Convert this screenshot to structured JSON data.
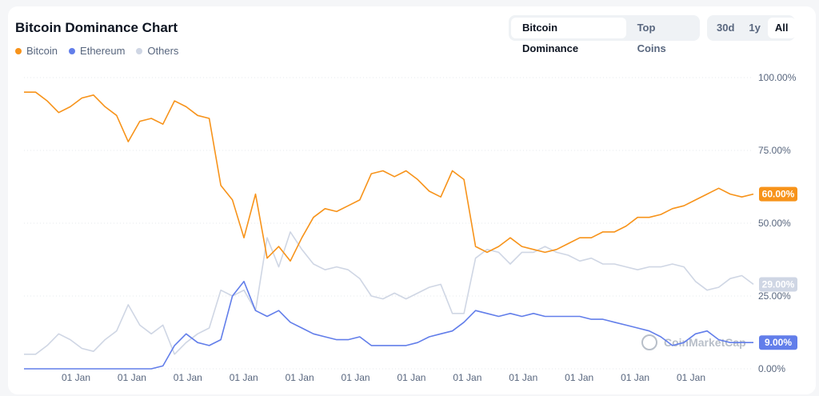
{
  "header": {
    "title": "Bitcoin Dominance Chart",
    "view_toggle": [
      {
        "label": "Bitcoin Dominance",
        "active": true
      },
      {
        "label": "Top Coins",
        "active": false
      }
    ],
    "range_toggle": [
      {
        "label": "30d",
        "active": false
      },
      {
        "label": "1y",
        "active": false
      },
      {
        "label": "All",
        "active": true
      }
    ]
  },
  "watermark": "CoinMarketCap",
  "colors": {
    "bitcoin": "#f7931a",
    "ethereum": "#627eea",
    "others": "#cfd6e4"
  },
  "chart_data": {
    "type": "line",
    "title": "Bitcoin Dominance Chart",
    "xlabel": "",
    "ylabel": "",
    "ylim": [
      0,
      100
    ],
    "yticks": [
      "100.00%",
      "75.00%",
      "50.00%",
      "25.00%",
      "0.00%"
    ],
    "xticks": [
      "01 Jan",
      "01 Jan",
      "01 Jan",
      "01 Jan",
      "01 Jan",
      "01 Jan",
      "01 Jan",
      "01 Jan",
      "01 Jan",
      "01 Jan",
      "01 Jan",
      "01 Jan"
    ],
    "grid": true,
    "legend": "top-left",
    "x": [
      "2013-04",
      "2013-07",
      "2013-10",
      "2014-01",
      "2014-04",
      "2014-07",
      "2014-10",
      "2015-01",
      "2015-04",
      "2015-07",
      "2015-10",
      "2016-01",
      "2016-04",
      "2016-07",
      "2016-10",
      "2017-01",
      "2017-03",
      "2017-05",
      "2017-07",
      "2017-09",
      "2017-11",
      "2018-01",
      "2018-03",
      "2018-05",
      "2018-07",
      "2018-09",
      "2018-11",
      "2019-01",
      "2019-03",
      "2019-05",
      "2019-07",
      "2019-09",
      "2019-11",
      "2020-01",
      "2020-03",
      "2020-05",
      "2020-07",
      "2020-09",
      "2020-11",
      "2021-01",
      "2021-03",
      "2021-05",
      "2021-07",
      "2021-09",
      "2021-11",
      "2022-01",
      "2022-03",
      "2022-05",
      "2022-07",
      "2022-09",
      "2022-11",
      "2023-01",
      "2023-03",
      "2023-05",
      "2023-07",
      "2023-09",
      "2023-11",
      "2024-01",
      "2024-03",
      "2024-05",
      "2024-07",
      "2024-09",
      "2024-11",
      "2025-01"
    ],
    "series": [
      {
        "name": "Bitcoin",
        "current_label": "60.00%",
        "values": [
          95,
          95,
          92,
          88,
          90,
          93,
          94,
          90,
          87,
          78,
          85,
          86,
          84,
          92,
          90,
          87,
          86,
          63,
          58,
          45,
          60,
          38,
          42,
          37,
          45,
          52,
          55,
          54,
          56,
          58,
          67,
          68,
          66,
          68,
          65,
          61,
          59,
          68,
          65,
          42,
          40,
          42,
          45,
          42,
          41,
          40,
          41,
          43,
          45,
          45,
          47,
          47,
          49,
          52,
          52,
          53,
          55,
          56,
          58,
          60,
          62,
          60,
          59,
          60
        ]
      },
      {
        "name": "Ethereum",
        "current_label": "9.00%",
        "values": [
          0,
          0,
          0,
          0,
          0,
          0,
          0,
          0,
          0,
          0,
          0,
          0,
          1,
          8,
          12,
          9,
          8,
          10,
          25,
          30,
          20,
          18,
          20,
          16,
          14,
          12,
          11,
          10,
          10,
          11,
          8,
          8,
          8,
          8,
          9,
          11,
          12,
          13,
          16,
          20,
          19,
          18,
          19,
          18,
          19,
          18,
          18,
          18,
          18,
          17,
          17,
          16,
          15,
          14,
          13,
          11,
          8,
          9,
          12,
          13,
          10,
          9,
          9,
          9
        ]
      },
      {
        "name": "Others",
        "current_label": "29.00%",
        "values": [
          5,
          5,
          8,
          12,
          10,
          7,
          6,
          10,
          13,
          22,
          15,
          12,
          15,
          5,
          9,
          12,
          14,
          27,
          25,
          27,
          20,
          45,
          35,
          47,
          41,
          36,
          34,
          35,
          34,
          31,
          25,
          24,
          26,
          24,
          26,
          28,
          29,
          19,
          19,
          38,
          41,
          40,
          36,
          40,
          40,
          42,
          40,
          39,
          37,
          38,
          36,
          36,
          35,
          34,
          35,
          35,
          36,
          35,
          30,
          27,
          28,
          31,
          32,
          29
        ]
      }
    ]
  }
}
